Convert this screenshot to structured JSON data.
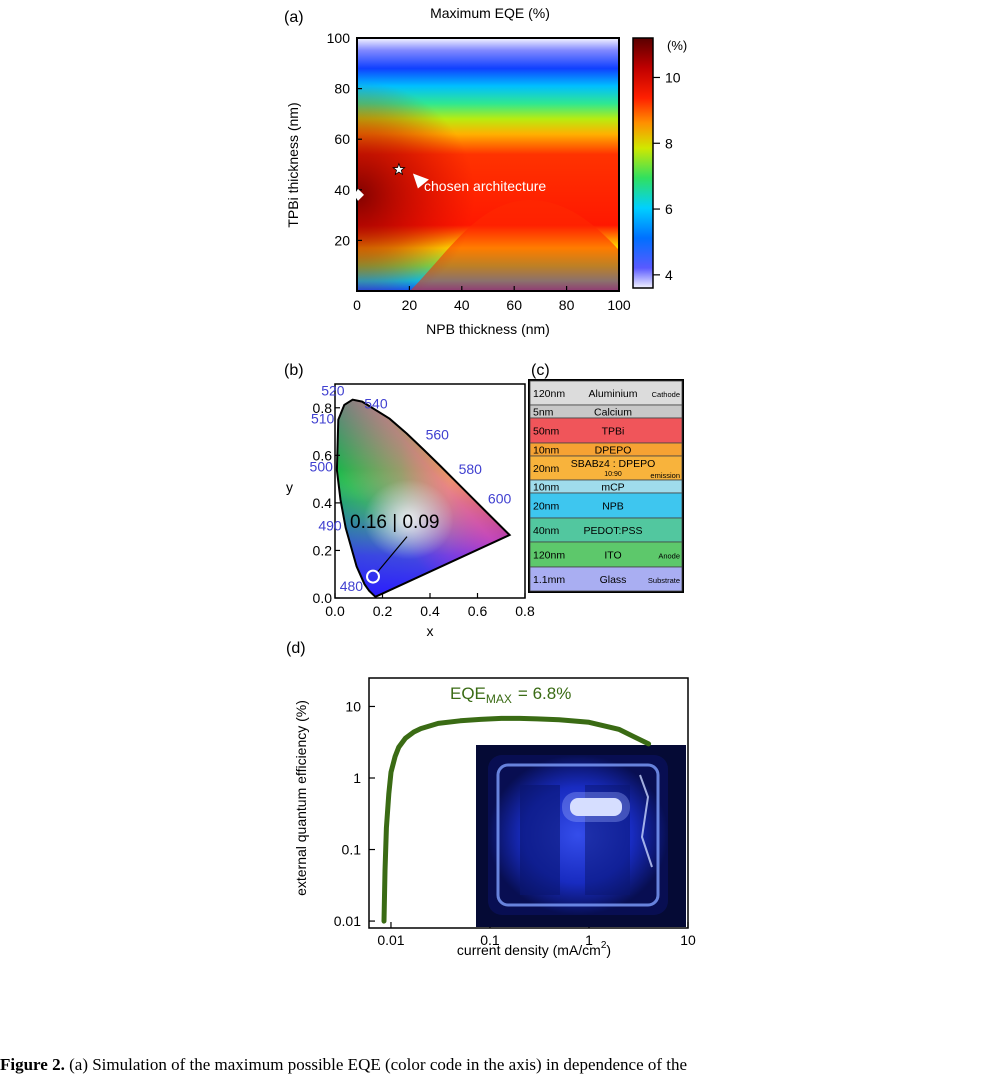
{
  "chart_data": [
    {
      "panel": "(a)",
      "type": "heatmap",
      "title": "Maximum EQE (%)",
      "xlabel": "NPB thickness (nm)",
      "ylabel": "TPBi thickness (nm)",
      "xlim": [
        0,
        100
      ],
      "ylim": [
        0,
        100
      ],
      "x_ticks": [
        "0",
        "20",
        "40",
        "60",
        "80",
        "100"
      ],
      "y_ticks": [
        "20",
        "40",
        "60",
        "80",
        "100"
      ],
      "colorbar": {
        "unit": "(%)",
        "range": [
          3.6,
          11.2
        ],
        "ticks": [
          "4",
          "6",
          "8",
          "10"
        ]
      },
      "markers": [
        {
          "shape": "star",
          "x": 16,
          "y": 48,
          "annotation": "chosen architecture"
        },
        {
          "shape": "diamond",
          "x": 0,
          "y": 38
        }
      ],
      "maximum_region": {
        "x": 0,
        "y": 40,
        "value": 11
      },
      "minimum_region": {
        "y": 100,
        "value": 3.6
      }
    },
    {
      "panel": "(b)",
      "type": "scatter",
      "xlabel": "x",
      "ylabel": "y",
      "xlim": [
        0.0,
        0.8
      ],
      "ylim": [
        0.0,
        0.9
      ],
      "x_ticks": [
        "0.0",
        "0.2",
        "0.4",
        "0.6",
        "0.8"
      ],
      "y_ticks": [
        "0.0",
        "0.2",
        "0.4",
        "0.6",
        "0.8"
      ],
      "wavelength_labels": [
        "480",
        "490",
        "500",
        "510",
        "520",
        "540",
        "560",
        "580",
        "600"
      ],
      "point": {
        "x": 0.16,
        "y": 0.09,
        "label": "0.16 | 0.09"
      }
    },
    {
      "panel": "(d)",
      "type": "line",
      "xlabel": "current density (mA/cm",
      "xlabel_sup": "2",
      "xlabel_end": ")",
      "ylabel": "external quantum efficiency (%)",
      "log_x": true,
      "log_y": true,
      "xlim": [
        0.006,
        10
      ],
      "ylim": [
        0.008,
        25
      ],
      "x_ticks": [
        "0.01",
        "0.1",
        "1",
        "10"
      ],
      "y_ticks": [
        "0.01",
        "0.1",
        "1",
        "10"
      ],
      "annotation": {
        "text": "EQE",
        "sub": "MAX",
        "rest": "= 6.8%"
      },
      "series": [
        {
          "color": "#3a6b14",
          "x": [
            0.0085,
            0.0087,
            0.009,
            0.0095,
            0.01,
            0.011,
            0.012,
            0.014,
            0.017,
            0.02,
            0.03,
            0.05,
            0.08,
            0.13,
            0.2,
            0.3,
            0.5,
            1.0,
            2.0,
            4.0
          ],
          "y": [
            0.01,
            0.05,
            0.2,
            0.6,
            1.2,
            2.0,
            2.7,
            3.6,
            4.4,
            4.9,
            5.8,
            6.3,
            6.6,
            6.8,
            6.8,
            6.7,
            6.5,
            6.0,
            4.8,
            3.0
          ]
        }
      ]
    }
  ],
  "structure": {
    "panel": "(c)",
    "layers": [
      {
        "thickness": "120nm",
        "name": "Aluminium",
        "role": "Cathode",
        "color": "#dcdcdc"
      },
      {
        "thickness": "5nm",
        "name": "Calcium",
        "role": "",
        "color": "#c8c8c8"
      },
      {
        "thickness": "50nm",
        "name": "TPBi",
        "role": "",
        "color": "#f0555a"
      },
      {
        "thickness": "10nm",
        "name": "DPEPO",
        "role": "",
        "color": "#f6a233"
      },
      {
        "thickness": "20nm",
        "name": "SBABz4 : DPEPO",
        "ratio": "10:90",
        "role": "emission",
        "color": "#f8b33c"
      },
      {
        "thickness": "10nm",
        "name": "mCP",
        "role": "",
        "color": "#9fdcec"
      },
      {
        "thickness": "20nm",
        "name": "NPB",
        "role": "",
        "color": "#3ec6ef"
      },
      {
        "thickness": "40nm",
        "name": "PEDOT:PSS",
        "role": "",
        "color": "#52c79f"
      },
      {
        "thickness": "120nm",
        "name": "ITO",
        "role": "Anode",
        "color": "#5dc86b"
      },
      {
        "thickness": "1.1mm",
        "name": "Glass",
        "role": "Substrate",
        "color": "#a9aef2"
      }
    ]
  },
  "caption": {
    "label": "Figure 2.",
    "text": "(a) Simulation of the maximum possible EQE (color code in the axis) in dependence of the"
  }
}
